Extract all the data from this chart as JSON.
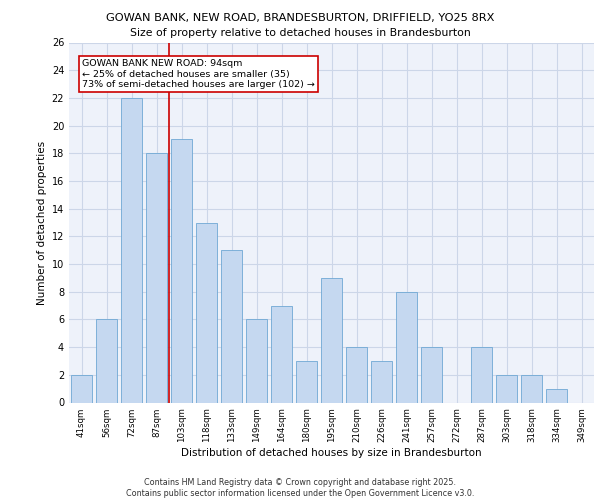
{
  "title1": "GOWAN BANK, NEW ROAD, BRANDESBURTON, DRIFFIELD, YO25 8RX",
  "title2": "Size of property relative to detached houses in Brandesburton",
  "xlabel": "Distribution of detached houses by size in Brandesburton",
  "ylabel": "Number of detached properties",
  "categories": [
    "41sqm",
    "56sqm",
    "72sqm",
    "87sqm",
    "103sqm",
    "118sqm",
    "133sqm",
    "149sqm",
    "164sqm",
    "180sqm",
    "195sqm",
    "210sqm",
    "226sqm",
    "241sqm",
    "257sqm",
    "272sqm",
    "287sqm",
    "303sqm",
    "318sqm",
    "334sqm",
    "349sqm"
  ],
  "values": [
    2,
    6,
    22,
    18,
    19,
    13,
    11,
    6,
    7,
    3,
    9,
    4,
    3,
    8,
    4,
    0,
    4,
    2,
    2,
    1,
    0
  ],
  "bar_color": "#c5d8f0",
  "bar_edge_color": "#6fa8d4",
  "grid_color": "#ccd6e8",
  "background_color": "#eef2fa",
  "vline_x": 3.5,
  "vline_color": "#cc0000",
  "annotation_line1": "GOWAN BANK NEW ROAD: 94sqm",
  "annotation_line2": "← 25% of detached houses are smaller (35)",
  "annotation_line3": "73% of semi-detached houses are larger (102) →",
  "annotation_box_color": "#ffffff",
  "annotation_box_edge": "#cc0000",
  "ylim": [
    0,
    26
  ],
  "yticks": [
    0,
    2,
    4,
    6,
    8,
    10,
    12,
    14,
    16,
    18,
    20,
    22,
    24,
    26
  ],
  "footer1": "Contains HM Land Registry data © Crown copyright and database right 2025.",
  "footer2": "Contains public sector information licensed under the Open Government Licence v3.0."
}
